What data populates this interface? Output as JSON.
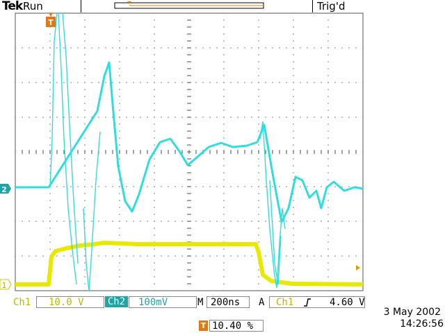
{
  "header": {
    "brand": "Tek",
    "status": "Run",
    "trigger_status": "Trig'd"
  },
  "markers": {
    "trigger_marker": "T",
    "ch2_marker": "2",
    "ch1_marker": "1"
  },
  "readout": {
    "ch1_label": "Ch1",
    "ch1_scale": "10.0 V",
    "ch2_label": "Ch2",
    "ch2_scale": "100mV",
    "m_label": "M",
    "timebase": "200ns",
    "a_label": "A",
    "trig_source": "Ch1",
    "trig_slope_icon": "rising-edge-icon",
    "trig_level": "4.60 V",
    "trig_position_icon": "T",
    "trig_position": "10.40 %"
  },
  "timestamp": {
    "date": "3 May 2002",
    "time": "14:26:56"
  },
  "colors": {
    "ch1": "#e8e800",
    "ch2": "#2fdde0",
    "marker": "#e07a10",
    "grid": "#444444"
  }
}
